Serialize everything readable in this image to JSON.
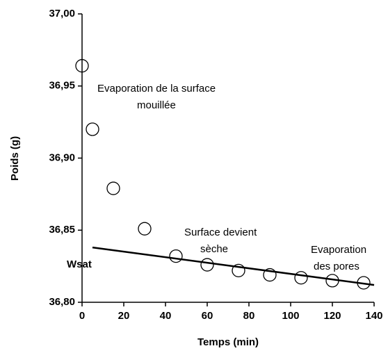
{
  "chart_data": {
    "type": "scatter",
    "x_label": "Temps (min)",
    "y_label": "Poids (g)",
    "xlim": [
      0,
      140
    ],
    "xticks": [
      0,
      20,
      40,
      60,
      80,
      100,
      120,
      140
    ],
    "ylim": [
      36.8,
      37.0
    ],
    "yticks": [
      {
        "value": 36.8,
        "label": "36,80"
      },
      {
        "value": 36.85,
        "label": "36,85"
      },
      {
        "value": 36.9,
        "label": "36,90"
      },
      {
        "value": 36.95,
        "label": "36,95"
      },
      {
        "value": 37.0,
        "label": "37,00"
      }
    ],
    "series": [
      {
        "type": "scatter",
        "color": "#000000",
        "x": [
          0,
          5,
          15,
          30,
          45,
          60,
          75,
          90,
          105,
          120,
          135
        ],
        "values": [
          36.964,
          36.92,
          36.879,
          36.851,
          36.832,
          36.826,
          36.822,
          36.819,
          36.817,
          36.815,
          36.8135
        ]
      },
      {
        "type": "line",
        "color": "#000000",
        "x": [
          5,
          140
        ],
        "values": [
          36.838,
          36.812
        ]
      }
    ],
    "annotations": [
      {
        "lines": [
          "Evaporation de la surface",
          "mouillée"
        ]
      },
      {
        "lines": [
          "Surface devient",
          "sèche"
        ]
      },
      {
        "lines": [
          "Evaporation",
          "des pores"
        ]
      },
      {
        "lines": [
          "Wsat"
        ]
      }
    ]
  }
}
